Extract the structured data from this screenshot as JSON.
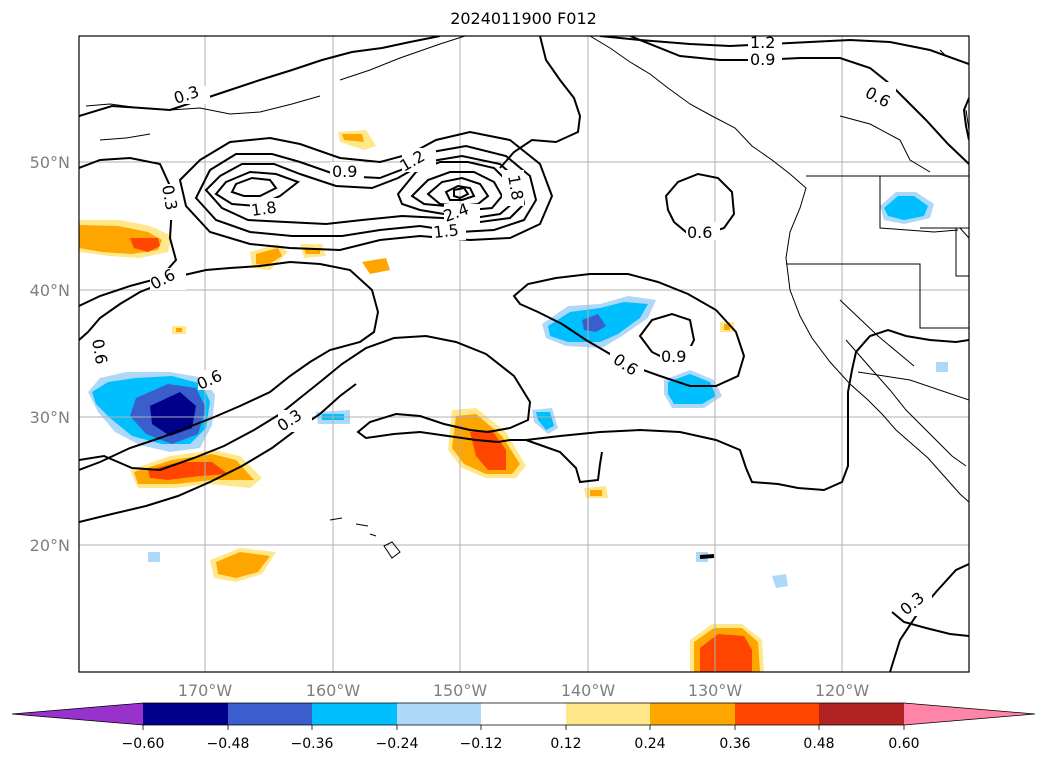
{
  "title": "2024011900 F012",
  "map": {
    "lat_ticks": [
      "50°N",
      "40°N",
      "30°N",
      "20°N"
    ],
    "lon_ticks": [
      "170°W",
      "160°W",
      "150°W",
      "140°W",
      "130°W",
      "120°W"
    ],
    "contour_labels": [
      "1.2",
      "0.9",
      "0.6",
      "0.3",
      "0.3",
      "0.9",
      "1.2",
      "1.8",
      "1.8",
      "2.4",
      "1.5",
      "0.6",
      "0.6",
      "0.6",
      "0.6",
      "0.9",
      "0.3",
      "0.6",
      "0.3"
    ]
  },
  "colorbar": {
    "ticks": [
      "−0.60",
      "−0.48",
      "−0.36",
      "−0.24",
      "−0.12",
      "0.12",
      "0.24",
      "0.36",
      "0.48",
      "0.60"
    ],
    "colors": [
      "#9932cc",
      "#00008b",
      "#3a5fcd",
      "#00bfff",
      "#add8f8",
      "#ffffff",
      "#ffe78a",
      "#ffa500",
      "#ff4500",
      "#b22222",
      "#ff85a8"
    ]
  },
  "colors": {
    "negative_light": "#add8f8",
    "negative_mid": "#00bfff",
    "negative_strong": "#3a5fcd",
    "negative_max": "#00008b",
    "positive_light": "#ffe78a",
    "positive_mid": "#ffa500",
    "positive_strong": "#ff4500"
  }
}
